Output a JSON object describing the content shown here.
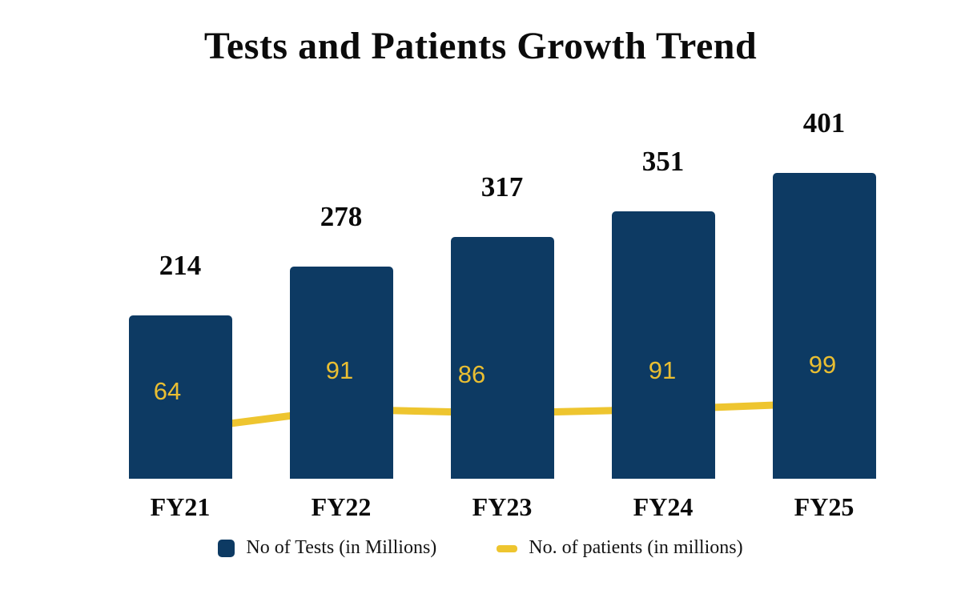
{
  "title": "Tests and Patients Growth Trend",
  "legend": {
    "items": [
      {
        "label": "No of Tests (in Millions)",
        "swatch": "square",
        "color": "#0d3a63"
      },
      {
        "label": "No. of patients (in millions)",
        "swatch": "dash",
        "color": "#eec52f"
      }
    ]
  },
  "chart_data": {
    "type": "bar",
    "title": "Tests and Patients Growth Trend",
    "categories": [
      "FY21",
      "FY22",
      "FY23",
      "FY24",
      "FY25"
    ],
    "series": [
      {
        "name": "No of Tests (in Millions)",
        "type": "bar",
        "color": "#0d3a63",
        "values": [
          214,
          278,
          317,
          351,
          401
        ],
        "data_label_color": "#0a0a0a"
      },
      {
        "name": "No. of patients (in millions)",
        "type": "line",
        "color": "#eec52f",
        "values": [
          64,
          91,
          86,
          91,
          99
        ],
        "data_label_color": "#e9be32"
      }
    ],
    "xlabel": "",
    "ylabel": "",
    "ylim": [
      0,
      420
    ],
    "grid": false,
    "axes_visible": false,
    "legend_position": "bottom",
    "data_labels": true
  }
}
